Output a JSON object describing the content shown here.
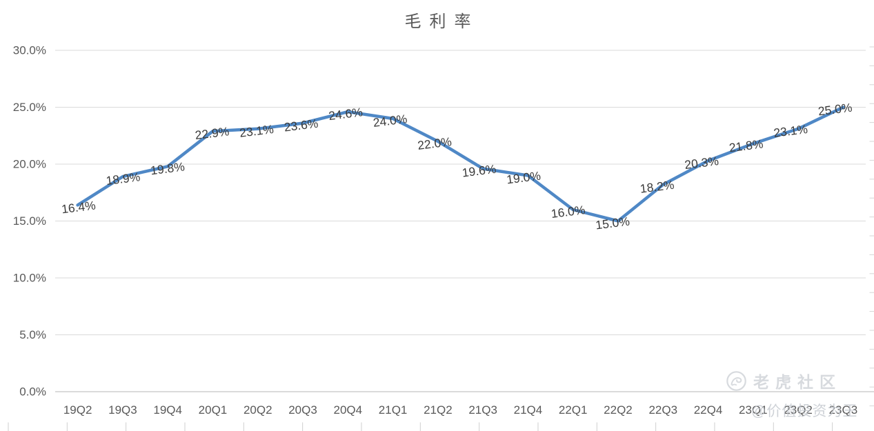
{
  "chart_data": {
    "type": "line",
    "title": "毛利率",
    "categories": [
      "19Q2",
      "19Q3",
      "19Q4",
      "20Q1",
      "20Q2",
      "20Q3",
      "20Q4",
      "21Q1",
      "21Q2",
      "21Q3",
      "21Q4",
      "22Q1",
      "22Q2",
      "22Q3",
      "22Q4",
      "23Q1",
      "23Q2",
      "23Q3"
    ],
    "series": [
      {
        "name": "毛利率",
        "values": [
          16.4,
          18.9,
          19.8,
          22.9,
          23.1,
          23.6,
          24.6,
          24.0,
          22.0,
          19.6,
          19.0,
          16.0,
          15.0,
          18.2,
          20.3,
          21.8,
          23.1,
          25.0
        ]
      }
    ],
    "point_labels": [
      "16.4%",
      "18.9%",
      "19.8%",
      "22.9%",
      "23.1%",
      "23.6%",
      "24.6%",
      "24.0%",
      "22.0%",
      "19.6%",
      "19.0%",
      "16.0%",
      "15.0%",
      "18.2%",
      "20.3%",
      "21.8%",
      "23.1%",
      "25.0%"
    ],
    "y_tick_labels": [
      "30.0%",
      "25.0%",
      "20.0%",
      "15.0%",
      "10.0%",
      "5.0%",
      "0.0%"
    ],
    "ylim": [
      0,
      30
    ],
    "y_step": 5,
    "grid": true,
    "legend": "none",
    "colors": {
      "line": "#4f88c6",
      "grid": "#d9d9d9",
      "axis_line": "#c4c4c4",
      "tick_label": "#595959",
      "data_label": "#3b3b3b",
      "title": "#595959"
    }
  },
  "watermark": {
    "community_label": "老虎社区",
    "tiger_logo_icon": "tiger-logo-icon",
    "handle": "@价值投资为王",
    "community_color": "#d7dade",
    "handle_color": "#c3c7ce"
  }
}
